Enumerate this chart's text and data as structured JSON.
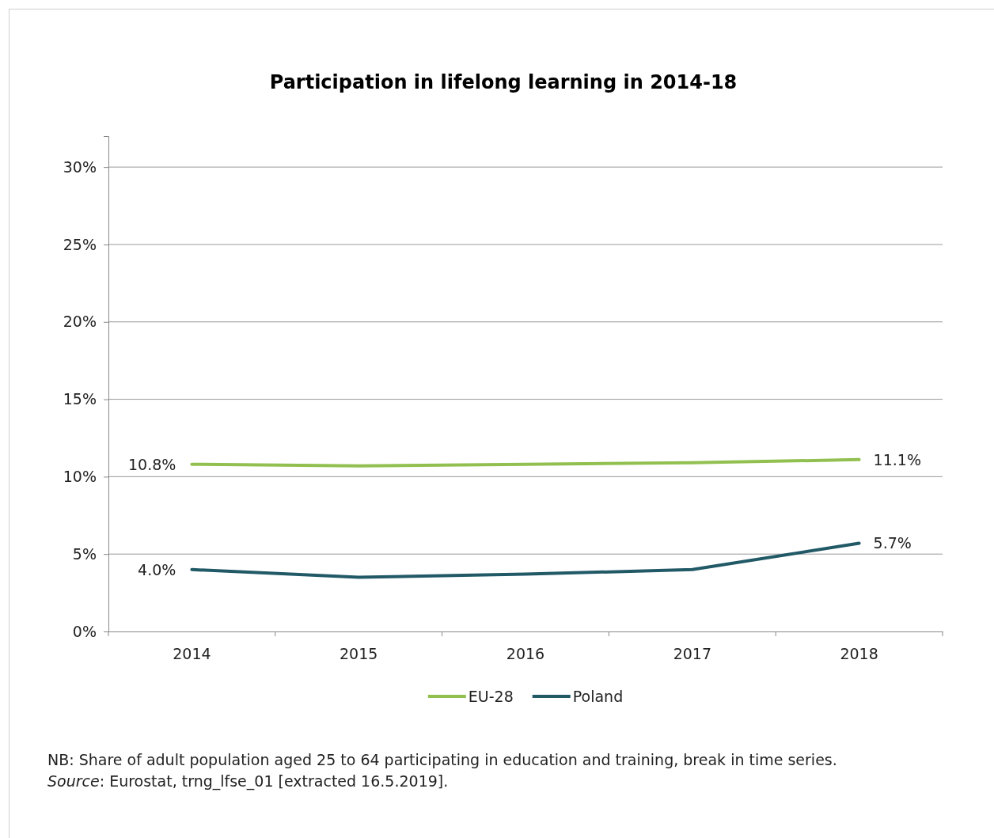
{
  "chart_data": {
    "type": "line",
    "title": "Participation in lifelong learning in 2014-18",
    "categories": [
      "2014",
      "2015",
      "2016",
      "2017",
      "2018"
    ],
    "series": [
      {
        "name": "EU-28",
        "color": "#92c050",
        "values": [
          10.8,
          10.7,
          10.8,
          10.9,
          11.1
        ],
        "value_labels": [
          "10.8%",
          null,
          null,
          null,
          "11.1%"
        ]
      },
      {
        "name": "Poland",
        "color": "#215967",
        "values": [
          4.0,
          3.5,
          3.7,
          4.0,
          5.7
        ],
        "value_labels": [
          "4.0%",
          null,
          null,
          null,
          "5.7%"
        ]
      }
    ],
    "ylim": [
      0,
      32
    ],
    "yticks": [
      {
        "value": 0,
        "label": "0%"
      },
      {
        "value": 5,
        "label": "5%"
      },
      {
        "value": 10,
        "label": "10%"
      },
      {
        "value": 15,
        "label": "15%"
      },
      {
        "value": 20,
        "label": "20%"
      },
      {
        "value": 25,
        "label": "25%"
      },
      {
        "value": 30,
        "label": "30%"
      }
    ],
    "grid": "y",
    "legend": "bottom",
    "marker": "none",
    "line_style": "solid",
    "annotations": [
      "NB: Share of adult population aged 25 to 64 participating in education and training, break in time series.",
      "Source: Eurostat, trng_lfse_01 [extracted 16.5.2019]."
    ]
  }
}
